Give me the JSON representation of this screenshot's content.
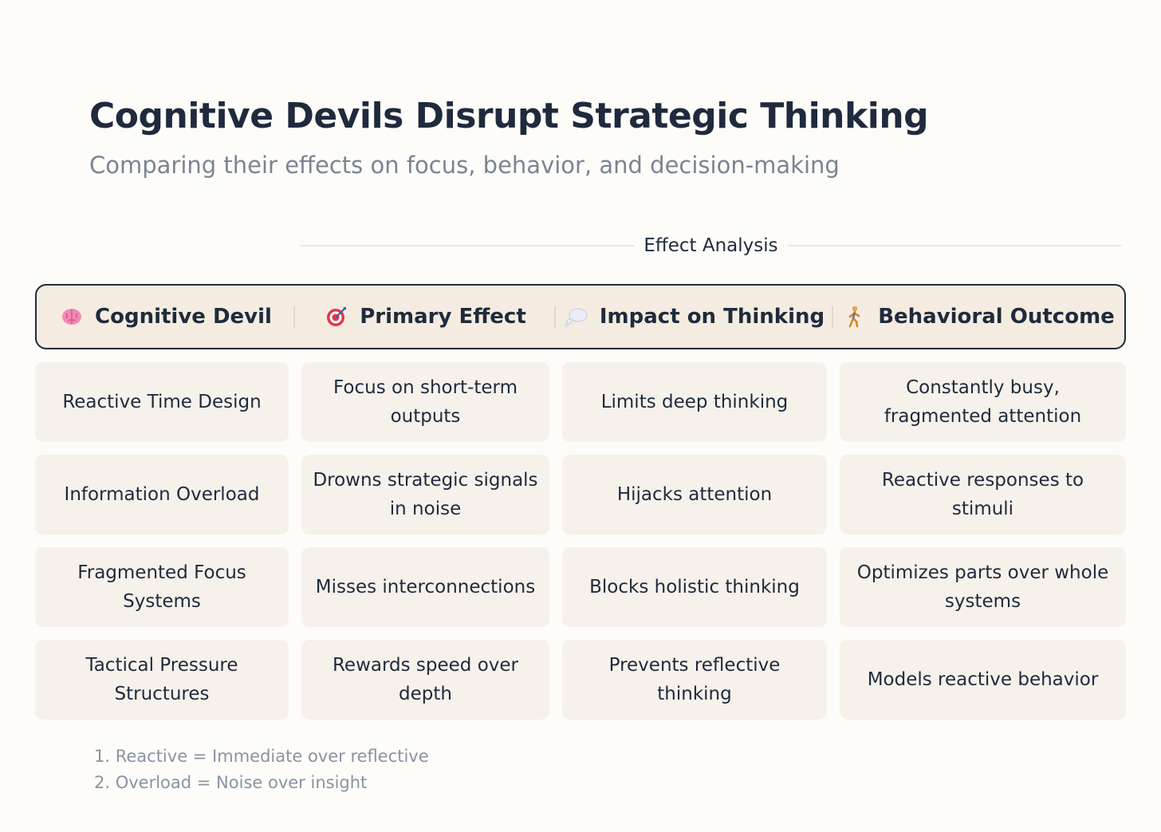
{
  "title": "Cognitive Devils Disrupt Strategic Thinking",
  "subtitle": "Comparing their effects on focus, behavior, and decision-making",
  "section_label": "Effect Analysis",
  "columns": [
    {
      "icon": "brain-icon",
      "label": "Cognitive Devil"
    },
    {
      "icon": "target-icon",
      "label": "Primary Effect"
    },
    {
      "icon": "thought-bubble-icon",
      "label": "Impact on Thinking"
    },
    {
      "icon": "person-walking-icon",
      "label": "Behavioral Outcome"
    }
  ],
  "rows": [
    [
      "Reactive Time Design",
      "Focus on short-term outputs",
      "Limits deep thinking",
      "Constantly busy, fragmented attention"
    ],
    [
      "Information Overload",
      "Drowns strategic signals in noise",
      "Hijacks attention",
      "Reactive responses to stimuli"
    ],
    [
      "Fragmented Focus Systems",
      "Misses interconnections",
      "Blocks holistic thinking",
      "Optimizes parts over whole systems"
    ],
    [
      "Tactical Pressure Structures",
      "Rewards speed over depth",
      "Prevents reflective thinking",
      "Models reactive behavior"
    ]
  ],
  "notes": [
    "1. Reactive = Immediate over reflective",
    "2. Overload = Noise over insight"
  ],
  "colors": {
    "background": "#fdfcf8",
    "header_fill": "#f4ece0",
    "cell_fill": "#f6f1ea",
    "text_dark": "#1f2a3d",
    "text_muted": "#7b8494"
  }
}
